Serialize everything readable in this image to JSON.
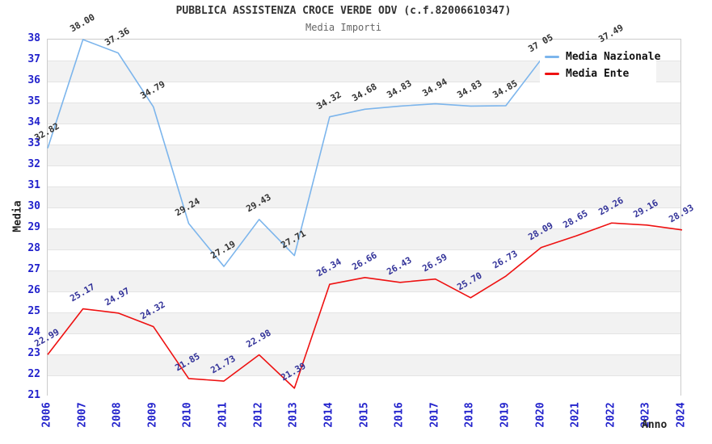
{
  "chart_data": {
    "type": "line",
    "title": "PUBBLICA ASSISTENZA CROCE VERDE ODV (c.f.82006610347)",
    "subtitle": "Media Importi",
    "xlabel": "Anno",
    "ylabel": "Media",
    "categories": [
      "2006",
      "2007",
      "2008",
      "2009",
      "2010",
      "2011",
      "2012",
      "2013",
      "2014",
      "2015",
      "2016",
      "2017",
      "2018",
      "2019",
      "2020",
      "2021",
      "2022",
      "2023",
      "2024"
    ],
    "series": [
      {
        "name": "Media Nazionale",
        "color": "#7cb5ec",
        "label_color": "#333333",
        "values": [
          32.82,
          38.0,
          37.36,
          34.79,
          29.24,
          27.19,
          29.43,
          27.71,
          34.32,
          34.68,
          34.83,
          34.94,
          34.83,
          34.85,
          37.05,
          null,
          37.49,
          null,
          null
        ]
      },
      {
        "name": "Media Ente",
        "color": "#ee1111",
        "label_color": "#333399",
        "values": [
          22.99,
          25.17,
          24.97,
          24.32,
          21.85,
          21.73,
          22.98,
          21.39,
          26.34,
          26.66,
          26.43,
          26.59,
          25.7,
          26.73,
          28.09,
          28.65,
          29.26,
          29.16,
          28.93
        ]
      }
    ],
    "ylim": [
      21,
      38
    ],
    "y_tick_step": 1,
    "grid": "horizontal-alternating-bands",
    "legend_position": "top-right"
  },
  "colors": {
    "tick_label": "#2222cc",
    "band_gray": "#f2f2f2",
    "grid_line": "#e4e4e4",
    "plot_border": "#cccccc",
    "title": "#333333",
    "subtitle": "#666666"
  }
}
